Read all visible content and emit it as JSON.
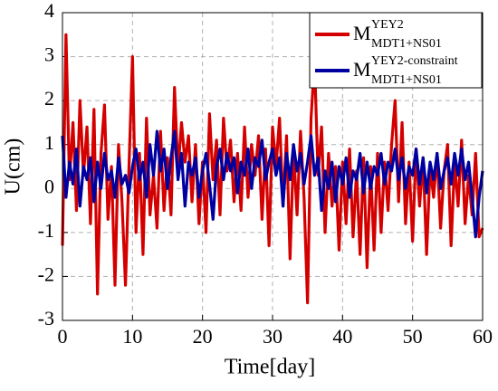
{
  "chart_data": {
    "type": "line",
    "xlabel": "Time[day]",
    "ylabel": "U(cm)",
    "xlim": [
      0,
      60
    ],
    "xticks": [
      0,
      10,
      20,
      30,
      40,
      50,
      60
    ],
    "ylim": [
      -3,
      4
    ],
    "yticks": [
      -3,
      -2,
      -1,
      0,
      1,
      2,
      3,
      4
    ],
    "grid": true,
    "legend": "upper right",
    "x": [
      0,
      0.5,
      1,
      1.5,
      2,
      2.5,
      3,
      3.5,
      4,
      4.5,
      5,
      5.5,
      6,
      6.5,
      7,
      7.5,
      8,
      8.5,
      9,
      9.5,
      10,
      10.5,
      11,
      11.5,
      12,
      12.5,
      13,
      13.5,
      14,
      14.5,
      15,
      15.5,
      16,
      16.5,
      17,
      17.5,
      18,
      18.5,
      19,
      19.5,
      20,
      20.5,
      21,
      21.5,
      22,
      22.5,
      23,
      23.5,
      24,
      24.5,
      25,
      25.5,
      26,
      26.5,
      27,
      27.5,
      28,
      28.5,
      29,
      29.5,
      30,
      30.5,
      31,
      31.5,
      32,
      32.5,
      33,
      33.5,
      34,
      34.5,
      35,
      35.5,
      36,
      36.5,
      37,
      37.5,
      38,
      38.5,
      39,
      39.5,
      40,
      40.5,
      41,
      41.5,
      42,
      42.5,
      43,
      43.5,
      44,
      44.5,
      45,
      45.5,
      46,
      46.5,
      47,
      47.5,
      48,
      48.5,
      49,
      49.5,
      50,
      50.5,
      51,
      51.5,
      52,
      52.5,
      53,
      53.5,
      54,
      54.5,
      55,
      55.5,
      56,
      56.5,
      57,
      57.5,
      58,
      58.5,
      59,
      59.5,
      60
    ],
    "series": [
      {
        "name": "M",
        "superscript": "YEY2",
        "subscript": "MDT1+NS01",
        "color": "#d40000",
        "values": [
          -1.3,
          3.5,
          0.2,
          1.5,
          -0.5,
          2.0,
          0.3,
          1.4,
          -0.8,
          1.8,
          -2.4,
          0.8,
          1.9,
          -0.7,
          0.5,
          -2.2,
          1.0,
          -0.3,
          -2.2,
          0.5,
          3.0,
          -1.0,
          0.8,
          -1.5,
          1.6,
          -0.6,
          0.3,
          -0.9,
          1.3,
          -0.5,
          0.7,
          -0.6,
          2.3,
          0.4,
          1.5,
          0.6,
          1.2,
          -0.3,
          1.0,
          -0.8,
          0.6,
          -1.0,
          1.7,
          0.2,
          1.1,
          -0.6,
          1.6,
          0.4,
          1.1,
          -0.3,
          0.8,
          -0.5,
          1.4,
          -0.2,
          1.0,
          0.3,
          1.2,
          -0.7,
          0.9,
          -1.3,
          1.4,
          0.5,
          1.6,
          -0.4,
          1.2,
          -1.6,
          0.9,
          -0.6,
          1.3,
          -0.2,
          -2.6,
          1.6,
          2.9,
          0.3,
          1.4,
          -1.0,
          0.8,
          -0.4,
          0.5,
          -1.4,
          0.6,
          -0.8,
          0.9,
          -1.1,
          0.4,
          -1.5,
          0.7,
          -1.8,
          0.5,
          -1.4,
          0.8,
          -1.0,
          0.6,
          -0.5,
          1.0,
          2.0,
          -0.3,
          1.5,
          -0.8,
          0.6,
          -1.2,
          0.9,
          -0.4,
          0.7,
          -1.5,
          0.5,
          -0.2,
          0.8,
          -0.9,
          0.4,
          1.0,
          -1.3,
          0.6,
          -0.4,
          1.1,
          -0.8,
          0.3,
          -0.6,
          0.8,
          -1.1,
          -0.9
        ]
      },
      {
        "name": "M",
        "superscript": "YEY2-constraint",
        "subscript": "MDT1+NS01",
        "color": "#0000a0",
        "values": [
          1.2,
          -0.2,
          0.6,
          0.1,
          0.9,
          -0.4,
          0.5,
          0.2,
          0.7,
          -0.3,
          0.6,
          0.0,
          0.8,
          0.2,
          0.4,
          -0.2,
          0.7,
          0.1,
          0.3,
          -0.1,
          0.5,
          0.9,
          0.2,
          0.6,
          -0.2,
          1.0,
          0.3,
          1.3,
          0.4,
          0.9,
          0.0,
          0.7,
          1.3,
          0.2,
          0.8,
          -0.4,
          0.6,
          0.3,
          0.7,
          -0.2,
          0.4,
          0.8,
          0.1,
          -0.7,
          0.5,
          0.9,
          0.2,
          0.8,
          0.4,
          0.7,
          -0.1,
          0.6,
          0.3,
          0.9,
          0.0,
          0.7,
          0.5,
          1.1,
          0.2,
          0.6,
          0.9,
          0.3,
          0.7,
          -0.4,
          0.8,
          0.2,
          1.0,
          0.4,
          0.8,
          0.1,
          0.6,
          1.2,
          0.3,
          0.7,
          -0.5,
          0.4,
          0.0,
          0.6,
          -0.3,
          0.5,
          0.1,
          0.7,
          -0.2,
          0.4,
          0.2,
          0.8,
          -0.1,
          0.6,
          0.0,
          0.5,
          0.3,
          0.8,
          0.1,
          0.6,
          0.4,
          0.9,
          0.2,
          0.7,
          0.0,
          0.5,
          0.3,
          0.9,
          0.1,
          0.7,
          -0.1,
          0.6,
          0.2,
          0.8,
          0.0,
          0.4,
          0.7,
          0.1,
          0.8,
          0.3,
          0.9,
          0.2,
          0.6,
          -0.2,
          -1.1,
          -0.2,
          0.4
        ]
      }
    ]
  }
}
